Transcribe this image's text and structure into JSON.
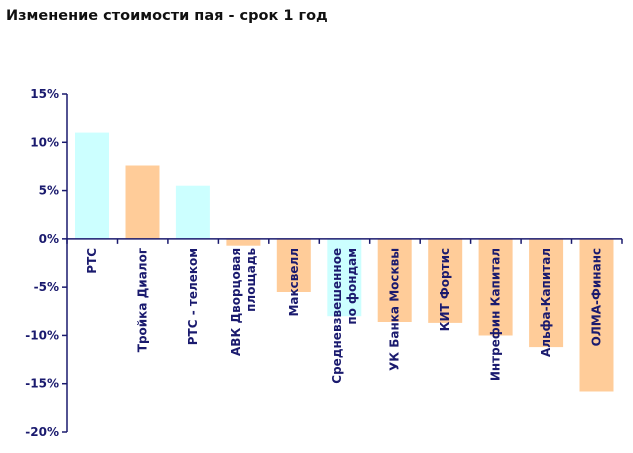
{
  "chart_data": {
    "type": "bar",
    "title": "Изменение стоимости пая - срок 1 год",
    "xlabel": "",
    "ylabel": "",
    "ylim": [
      -20,
      15
    ],
    "y_ticks": [
      15,
      10,
      5,
      0,
      -5,
      -10,
      -15,
      -20
    ],
    "y_tick_labels": [
      "15%",
      "10%",
      "5%",
      "0%",
      "-5%",
      "-10%",
      "-15%",
      "-20%"
    ],
    "categories": [
      [
        "РТС"
      ],
      [
        "Тройка Диалог"
      ],
      [
        "РТС - телеком"
      ],
      [
        "АВК Дворцовая",
        "площадь"
      ],
      [
        "Максвелл"
      ],
      [
        "Средневзвешенное",
        "по фондам"
      ],
      [
        "УК Банка Москвы"
      ],
      [
        "КИТ Фортис"
      ],
      [
        "Интрефин Капитал"
      ],
      [
        "Альфа-Капитал"
      ],
      [
        "ОЛМА-Финанс"
      ]
    ],
    "values": [
      11.0,
      7.6,
      5.5,
      -0.7,
      -5.5,
      -8.0,
      -8.6,
      -8.7,
      -10.0,
      -11.2,
      -15.8
    ],
    "bar_colors": [
      "#ccffff",
      "#ffcc99",
      "#ccffff",
      "#ffcc99",
      "#ffcc99",
      "#ccffff",
      "#ffcc99",
      "#ffcc99",
      "#ffcc99",
      "#ffcc99",
      "#ffcc99"
    ],
    "axis_color": "#1a1a6e",
    "grid": false,
    "legend": "none"
  }
}
